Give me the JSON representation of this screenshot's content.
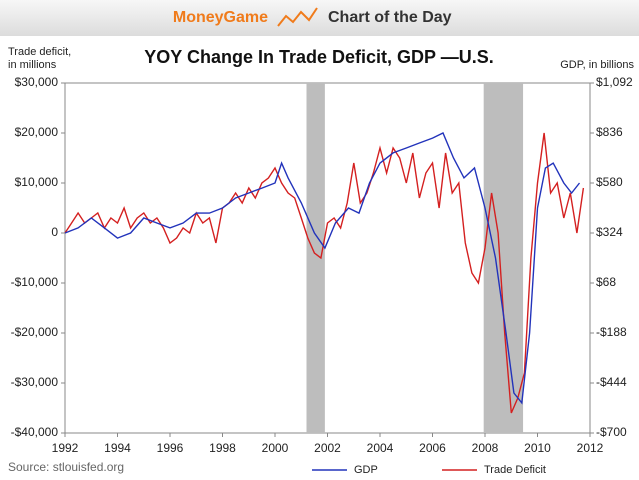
{
  "header": {
    "brand": "MoneyGame",
    "section": "Chart of the Day"
  },
  "chart_data": {
    "type": "line",
    "title": "YOY Change In Trade Deficit, GDP —U.S.",
    "ylabel": [
      "Trade deficit,",
      "in millions"
    ],
    "y2label": "GDP, in billions",
    "source": "Source: stlouisfed.org",
    "xlim": [
      1992,
      2012
    ],
    "xticks": [
      1992,
      1994,
      1996,
      1998,
      2000,
      2002,
      2004,
      2006,
      2008,
      2010,
      2012
    ],
    "ylim": [
      -40000,
      30000
    ],
    "yticks": [
      {
        "value": -40000,
        "label": "-$40,000"
      },
      {
        "value": -30000,
        "label": "-$30,000"
      },
      {
        "value": -20000,
        "label": "-$20,000"
      },
      {
        "value": -10000,
        "label": "-$10,000"
      },
      0,
      {
        "value": 10000,
        "label": "$10,000"
      },
      {
        "value": 20000,
        "label": "$20,000"
      },
      {
        "value": 30000,
        "label": "$30,000"
      }
    ],
    "y2lim": [
      -700,
      1092
    ],
    "y2ticks": [
      {
        "value": -700,
        "label": "-$700"
      },
      {
        "value": -444,
        "label": "-$444"
      },
      {
        "value": -188,
        "label": "-$188"
      },
      {
        "value": 68,
        "label": "$68"
      },
      {
        "value": 324,
        "label": "$324"
      },
      {
        "value": 580,
        "label": "$580"
      },
      {
        "value": 836,
        "label": "$836"
      },
      {
        "value": 1092,
        "label": "$1,092"
      }
    ],
    "shaded_ranges": [
      [
        2001.2,
        2001.9
      ],
      [
        2007.95,
        2009.45
      ]
    ],
    "shade_color": "#bdbdbd",
    "series": [
      {
        "name": "GDP",
        "color": "#2233bb",
        "axis": "y2",
        "x": [
          1992,
          1992.5,
          1993,
          1993.5,
          1994,
          1994.5,
          1995,
          1995.5,
          1996,
          1996.5,
          1997,
          1997.5,
          1998,
          1998.5,
          1999,
          1999.5,
          2000,
          2000.25,
          2000.5,
          2001,
          2001.5,
          2001.9,
          2002.3,
          2002.8,
          2003.2,
          2003.6,
          2004,
          2004.5,
          2005,
          2005.5,
          2006,
          2006.4,
          2006.8,
          2007.2,
          2007.6,
          2008,
          2008.4,
          2008.8,
          2009.1,
          2009.4,
          2009.7,
          2010,
          2010.3,
          2010.6,
          2011,
          2011.3,
          2011.6
        ],
        "values": [
          324,
          350,
          401,
          350,
          298,
          324,
          401,
          375,
          350,
          375,
          426,
          426,
          452,
          503,
          529,
          554,
          580,
          682,
          606,
          478,
          324,
          247,
          375,
          452,
          426,
          580,
          682,
          734,
          759,
          785,
          810,
          836,
          708,
          606,
          657,
          452,
          196,
          -188,
          -495,
          -546,
          -188,
          452,
          657,
          682,
          580,
          529,
          580
        ]
      },
      {
        "name": "Trade Deficit",
        "color": "#d42020",
        "x": [
          1992,
          1992.25,
          1992.5,
          1992.75,
          1993,
          1993.25,
          1993.5,
          1993.75,
          1994,
          1994.25,
          1994.5,
          1994.75,
          1995,
          1995.25,
          1995.5,
          1995.75,
          1996,
          1996.25,
          1996.5,
          1996.75,
          1997,
          1997.25,
          1997.5,
          1997.75,
          1998,
          1998.25,
          1998.5,
          1998.75,
          1999,
          1999.25,
          1999.5,
          1999.75,
          2000,
          2000.25,
          2000.5,
          2000.75,
          2001,
          2001.25,
          2001.5,
          2001.75,
          2002,
          2002.25,
          2002.5,
          2002.75,
          2003,
          2003.25,
          2003.5,
          2003.75,
          2004,
          2004.25,
          2004.5,
          2004.75,
          2005,
          2005.25,
          2005.5,
          2005.75,
          2006,
          2006.25,
          2006.5,
          2006.75,
          2007,
          2007.25,
          2007.5,
          2007.75,
          2008,
          2008.25,
          2008.5,
          2008.75,
          2009,
          2009.25,
          2009.5,
          2009.75,
          2010,
          2010.25,
          2010.5,
          2010.75,
          2011,
          2011.25,
          2011.5,
          2011.75
        ],
        "values": [
          0,
          2000,
          4000,
          2000,
          3000,
          4000,
          1000,
          3000,
          2000,
          5000,
          1000,
          3000,
          4000,
          2000,
          3000,
          1000,
          -2000,
          -1000,
          1000,
          0,
          4000,
          2000,
          3000,
          -2000,
          5000,
          6000,
          8000,
          6000,
          9000,
          7000,
          10000,
          11000,
          13000,
          10000,
          8000,
          7000,
          3000,
          -1000,
          -4000,
          -5000,
          2000,
          3000,
          1000,
          6000,
          14000,
          6000,
          8000,
          12000,
          17000,
          12000,
          17000,
          15000,
          10000,
          16000,
          7000,
          12000,
          14000,
          5000,
          16000,
          8000,
          10000,
          -2000,
          -8000,
          -10000,
          -3000,
          8000,
          0,
          -20000,
          -36000,
          -33000,
          -28000,
          -5000,
          10000,
          20000,
          8000,
          10000,
          3000,
          8000,
          0,
          9000
        ]
      }
    ]
  }
}
